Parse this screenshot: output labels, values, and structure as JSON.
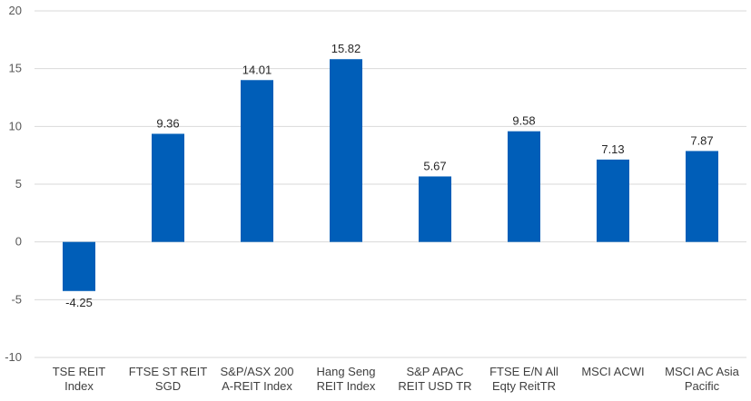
{
  "chart_data": {
    "type": "bar",
    "categories": [
      [
        "TSE REIT",
        "Index"
      ],
      [
        "FTSE ST REIT",
        "SGD"
      ],
      [
        "S&P/ASX 200",
        "A-REIT Index"
      ],
      [
        "Hang Seng",
        "REIT Index"
      ],
      [
        "S&P APAC",
        "REIT USD TR"
      ],
      [
        "FTSE E/N All",
        "Eqty ReitTR"
      ],
      [
        "MSCI ACWI"
      ],
      [
        "MSCI AC Asia",
        "Pacific"
      ]
    ],
    "values": [
      -4.25,
      9.36,
      14.01,
      15.82,
      5.67,
      9.58,
      7.13,
      7.87
    ],
    "data_labels": [
      "-4.25",
      "9.36",
      "14.01",
      "15.82",
      "5.67",
      "9.58",
      "7.13",
      "7.87"
    ],
    "ylim": [
      -10,
      20
    ],
    "yticks": [
      -10,
      -5,
      0,
      5,
      10,
      15,
      20
    ],
    "grid": true,
    "bar_color": "#005EB8",
    "grid_color": "#D9D9D9"
  }
}
